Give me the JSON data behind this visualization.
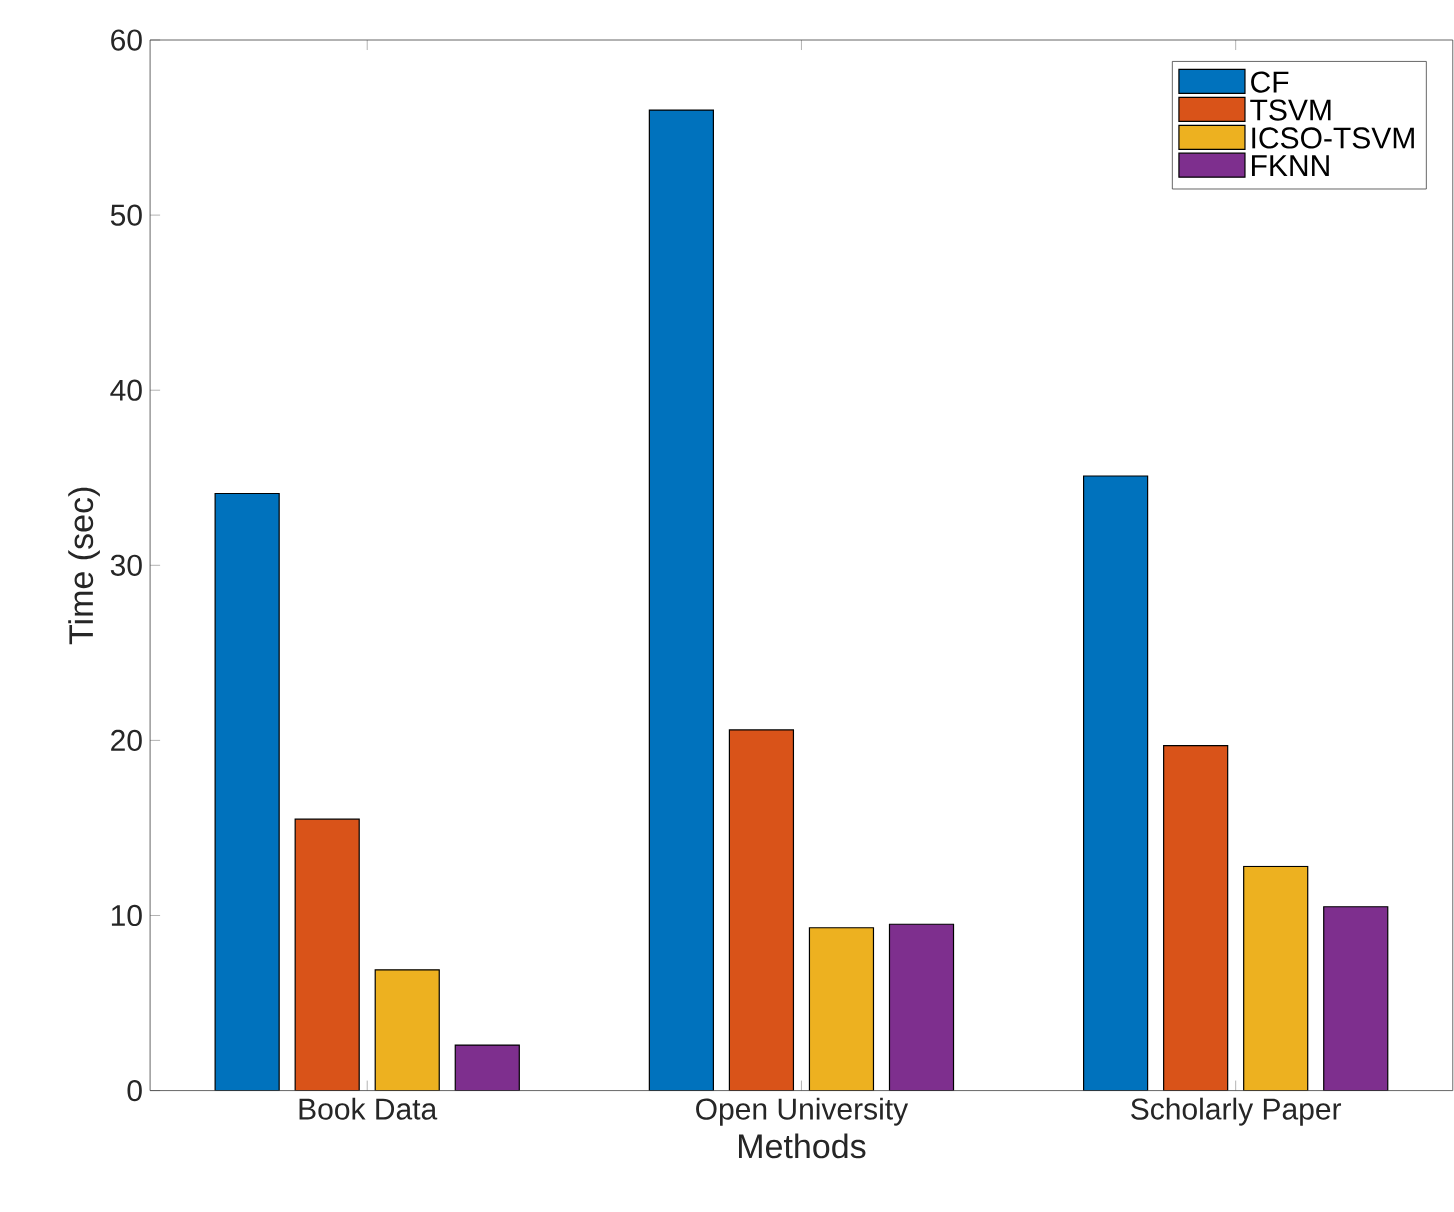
{
  "chart_data": {
    "type": "bar",
    "xlabel": "Methods",
    "ylabel": "Time (sec)",
    "categories": [
      "Book Data",
      "Open University",
      "Scholarly Paper"
    ],
    "series": [
      {
        "name": "CF",
        "color": "#0072bd",
        "values": [
          34.1,
          56.0,
          35.1
        ]
      },
      {
        "name": "TSVM",
        "color": "#d95319",
        "values": [
          15.5,
          20.6,
          19.7
        ]
      },
      {
        "name": "ICSO-TSVM",
        "color": "#edb120",
        "values": [
          6.9,
          9.3,
          12.8
        ]
      },
      {
        "name": "FKNN",
        "color": "#7e2f8e",
        "values": [
          2.6,
          9.5,
          10.5
        ]
      }
    ],
    "ylim": [
      0,
      60
    ],
    "yticks": [
      0,
      10,
      20,
      30,
      40,
      50,
      60
    ],
    "grid": false,
    "legend": "top right"
  }
}
